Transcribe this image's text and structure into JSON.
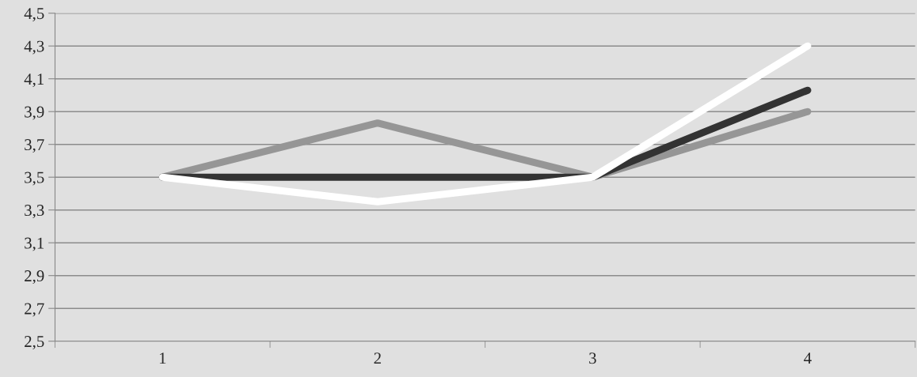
{
  "chart_data": {
    "type": "line",
    "categories": [
      "1",
      "2",
      "3",
      "4"
    ],
    "series": [
      {
        "color": "#969696",
        "values": [
          3.5,
          3.83,
          3.5,
          3.9
        ]
      },
      {
        "color": "#333333",
        "values": [
          3.5,
          3.5,
          3.5,
          4.03
        ]
      },
      {
        "color": "#ffffff",
        "values": [
          3.5,
          3.35,
          3.5,
          4.3
        ]
      }
    ],
    "ylim": [
      2.5,
      4.5
    ],
    "yticks": [
      {
        "value": 2.5,
        "label": "2,5"
      },
      {
        "value": 2.7,
        "label": "2,7"
      },
      {
        "value": 2.9,
        "label": "2,9"
      },
      {
        "value": 3.1,
        "label": "3,1"
      },
      {
        "value": 3.3,
        "label": "3,3"
      },
      {
        "value": 3.5,
        "label": "3,5"
      },
      {
        "value": 3.7,
        "label": "3,7"
      },
      {
        "value": 3.9,
        "label": "3,9"
      },
      {
        "value": 4.1,
        "label": "4,1"
      },
      {
        "value": 4.3,
        "label": "4,3"
      },
      {
        "value": 4.5,
        "label": "4,5"
      }
    ],
    "grid": "y",
    "marker": "none",
    "line_style": "solid"
  }
}
